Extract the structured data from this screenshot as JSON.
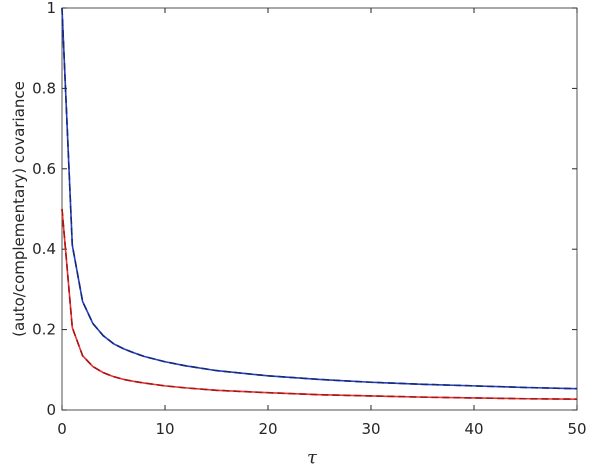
{
  "chart_data": {
    "type": "line",
    "xlabel": "τ",
    "ylabel": "(auto/complementary) covariance",
    "x": [
      0,
      1,
      2,
      3,
      4,
      5,
      6,
      7,
      8,
      10,
      12,
      15,
      20,
      25,
      30,
      35,
      40,
      45,
      50
    ],
    "series": [
      {
        "color": "#2040d0",
        "dash": false,
        "values": [
          1,
          0.41,
          0.27,
          0.215,
          0.185,
          0.165,
          0.152,
          0.142,
          0.133,
          0.12,
          0.11,
          0.098,
          0.085,
          0.076,
          0.069,
          0.064,
          0.06,
          0.056,
          0.053
        ]
      },
      {
        "color": "#1a2a70",
        "dash": true,
        "values": [
          1,
          0.41,
          0.27,
          0.215,
          0.185,
          0.165,
          0.152,
          0.142,
          0.133,
          0.12,
          0.11,
          0.098,
          0.085,
          0.076,
          0.069,
          0.064,
          0.06,
          0.056,
          0.053
        ]
      },
      {
        "color": "#f03030",
        "dash": false,
        "values": [
          0.5,
          0.205,
          0.135,
          0.108,
          0.093,
          0.083,
          0.076,
          0.071,
          0.067,
          0.06,
          0.055,
          0.049,
          0.043,
          0.038,
          0.035,
          0.032,
          0.03,
          0.028,
          0.027
        ]
      },
      {
        "color": "#a01818",
        "dash": true,
        "values": [
          0.5,
          0.205,
          0.135,
          0.108,
          0.093,
          0.083,
          0.076,
          0.071,
          0.067,
          0.06,
          0.055,
          0.049,
          0.043,
          0.038,
          0.035,
          0.032,
          0.03,
          0.028,
          0.027
        ]
      }
    ],
    "xlim": [
      0,
      50
    ],
    "xticks": [
      0,
      10,
      20,
      30,
      40,
      50
    ],
    "ylim": [
      0,
      1
    ],
    "yticks": [
      0,
      0.2,
      0.4,
      0.6,
      0.8,
      1
    ]
  }
}
